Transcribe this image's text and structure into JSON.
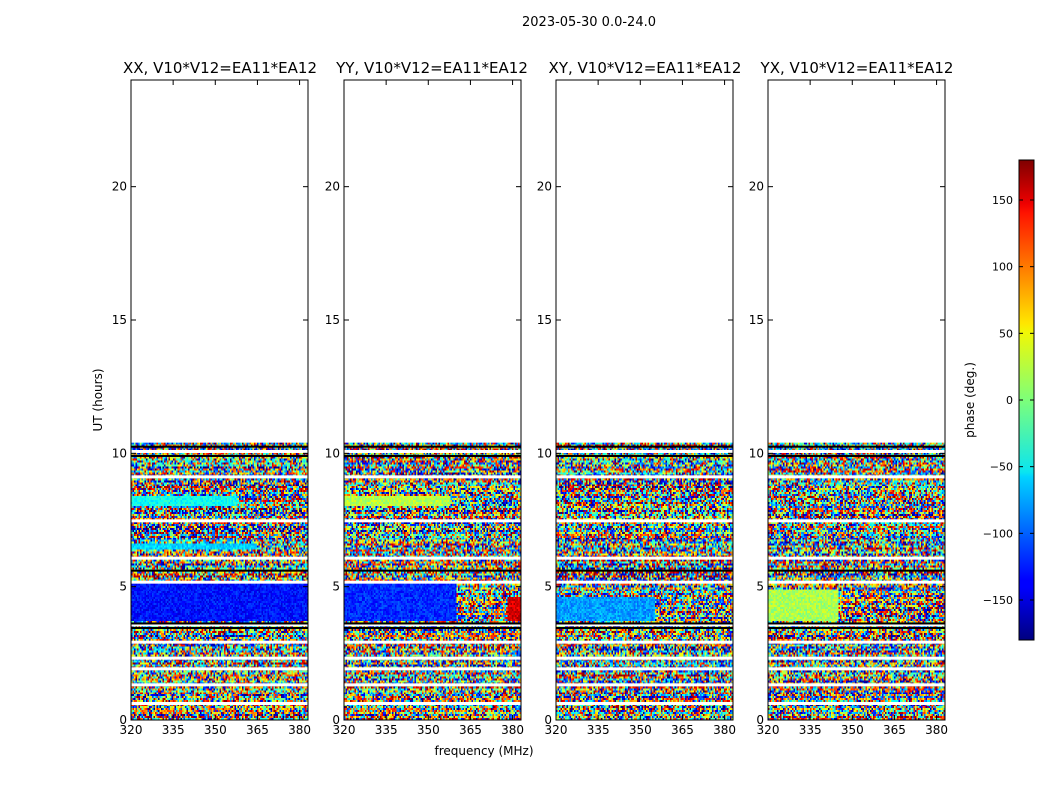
{
  "chart_data": {
    "type": "heatmap",
    "suptitle": "2023-05-30 0.0-24.0",
    "xlabel": "frequency (MHz)",
    "ylabel": "UT (hours)",
    "colorbar_label": "phase (deg.)",
    "colormap": "jet",
    "xlim": [
      320,
      383
    ],
    "ylim": [
      0,
      24
    ],
    "x_ticks": [
      320,
      335,
      350,
      365,
      380
    ],
    "y_ticks": [
      0,
      5,
      10,
      15,
      20
    ],
    "color_range": [
      -180,
      180
    ],
    "colorbar_ticks": [
      150,
      100,
      50,
      0,
      -50,
      -100,
      -150
    ],
    "colorbar_tick_labels": [
      "150",
      "100",
      "50",
      "0",
      "−50",
      "−100",
      "−150"
    ],
    "data_extent_hours": [
      0,
      10.4
    ],
    "panels": [
      {
        "title": "XX, V10*V12=EA11*EA12",
        "coherent_bands": [
          {
            "t0": 3.7,
            "t1": 5.1,
            "f0": 320,
            "f1": 383,
            "phase": -130
          },
          {
            "t0": 8.0,
            "t1": 8.4,
            "f0": 320,
            "f1": 358,
            "phase": -40
          },
          {
            "t0": 6.4,
            "t1": 6.6,
            "f0": 320,
            "f1": 365,
            "phase": -60
          }
        ]
      },
      {
        "title": "YY, V10*V12=EA11*EA12",
        "coherent_bands": [
          {
            "t0": 3.7,
            "t1": 5.1,
            "f0": 320,
            "f1": 360,
            "phase": -120
          },
          {
            "t0": 3.7,
            "t1": 4.6,
            "f0": 378,
            "f1": 383,
            "phase": 150
          },
          {
            "t0": 8.0,
            "t1": 8.4,
            "f0": 320,
            "f1": 358,
            "phase": 20
          }
        ]
      },
      {
        "title": "XY, V10*V12=EA11*EA12",
        "coherent_bands": [
          {
            "t0": 3.7,
            "t1": 4.6,
            "f0": 320,
            "f1": 355,
            "phase": -80
          }
        ]
      },
      {
        "title": "YX, V10*V12=EA11*EA12",
        "coherent_bands": [
          {
            "t0": 3.7,
            "t1": 4.9,
            "f0": 320,
            "f1": 345,
            "phase": 15
          }
        ]
      }
    ],
    "white_gap_rows_hours": [
      0.6,
      1.3,
      1.9,
      2.3,
      2.9,
      3.55,
      5.15,
      6.05,
      7.45,
      9.1,
      10.05
    ],
    "black_lines_hours": [
      3.45,
      3.62,
      5.6,
      9.9,
      10.25
    ]
  }
}
